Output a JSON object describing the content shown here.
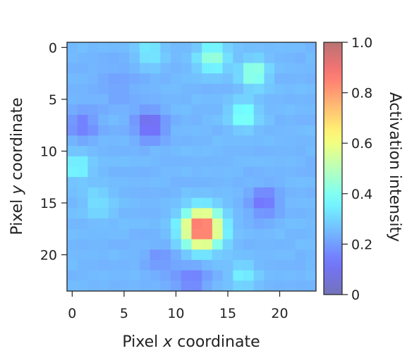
{
  "chart_data": {
    "type": "heatmap",
    "title": "",
    "xlabel": {
      "pre": "Pixel ",
      "italic": "x",
      "post": " coordinate"
    },
    "ylabel": {
      "pre": "Pixel ",
      "italic": "y",
      "post": " coordinate"
    },
    "x_ticks": [
      0,
      5,
      10,
      15,
      20
    ],
    "y_ticks": [
      0,
      5,
      10,
      15,
      20
    ],
    "x_tick_labels": [
      "0",
      "5",
      "10",
      "15",
      "20"
    ],
    "y_tick_labels": [
      "0",
      "5",
      "10",
      "15",
      "20"
    ],
    "xlim": [
      -0.5,
      23.5
    ],
    "ylim": [
      23.5,
      -0.5
    ],
    "grid": false,
    "colorbar": {
      "label": "Activation intensity",
      "range": [
        0,
        1
      ],
      "ticks": [
        0,
        0.2,
        0.4,
        0.6,
        0.8,
        1.0
      ],
      "tick_labels": [
        "0",
        "0.2",
        "0.4",
        "0.6",
        "0.8",
        "1.0"
      ],
      "colormap": "jet",
      "alpha": 0.55
    },
    "background_value": 0.25,
    "blobs": [
      {
        "x": 7.5,
        "y": 7.5,
        "peak": 0.07,
        "sigma": 1.0
      },
      {
        "x": 1.0,
        "y": 7.5,
        "peak": 0.14,
        "sigma": 1.0
      },
      {
        "x": 18.5,
        "y": 15.0,
        "peak": 0.12,
        "sigma": 1.0
      },
      {
        "x": 11.5,
        "y": 22.5,
        "peak": 0.14,
        "sigma": 1.1
      },
      {
        "x": 8.5,
        "y": 20.5,
        "peak": 0.18,
        "sigma": 1.0
      },
      {
        "x": 12.5,
        "y": 17.5,
        "peak": 0.95,
        "sigma": 1.25
      },
      {
        "x": 7.5,
        "y": 0.5,
        "peak": 0.36,
        "sigma": 0.9
      },
      {
        "x": 13.5,
        "y": 1.0,
        "peak": 0.45,
        "sigma": 1.0
      },
      {
        "x": 17.5,
        "y": 2.5,
        "peak": 0.47,
        "sigma": 0.9
      },
      {
        "x": 16.5,
        "y": 6.5,
        "peak": 0.42,
        "sigma": 0.9
      },
      {
        "x": 0.5,
        "y": 11.5,
        "peak": 0.38,
        "sigma": 0.9
      },
      {
        "x": 2.5,
        "y": 15.0,
        "peak": 0.33,
        "sigma": 1.0
      },
      {
        "x": 16.5,
        "y": 22.0,
        "peak": 0.35,
        "sigma": 0.9
      },
      {
        "x": 4.5,
        "y": 3.5,
        "peak": 0.21,
        "sigma": 1.5
      }
    ]
  }
}
